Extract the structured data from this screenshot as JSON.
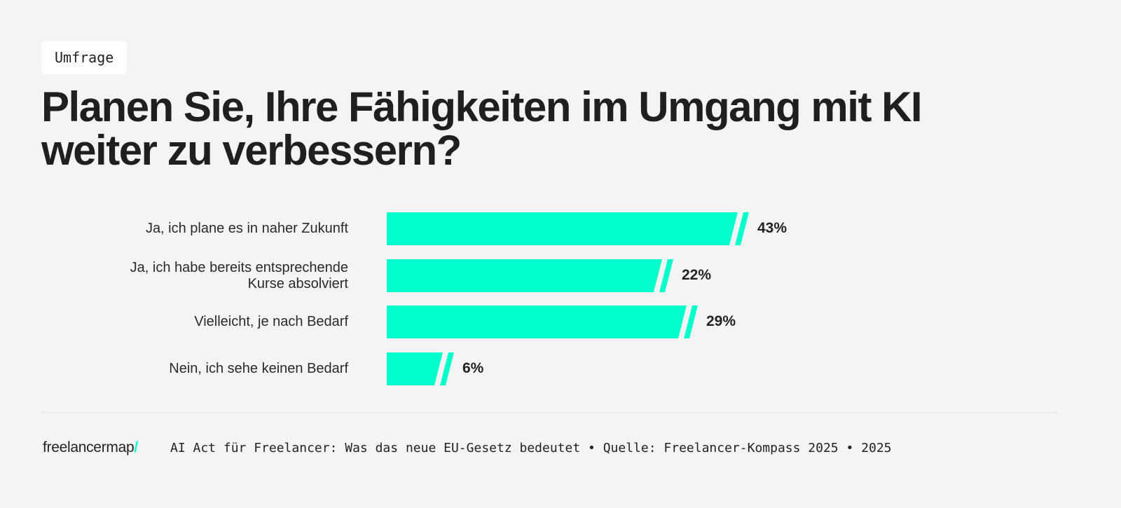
{
  "tag": "Umfrage",
  "chart_data": {
    "type": "bar",
    "orientation": "horizontal",
    "title": "Planen Sie, Ihre Fähigkeiten im Umgang mit KI weiter zu verbessern?",
    "categories": [
      "Ja, ich plane es in naher Zukunft",
      "Ja, ich habe bereits entsprechende Kurse absolviert",
      "Vielleicht, je nach Bedarf",
      "Nein, ich sehe keinen Bedarf"
    ],
    "values": [
      43,
      22,
      29,
      6
    ],
    "value_labels": [
      "43%",
      "22%",
      "29%",
      "6%"
    ],
    "bar_color": "#00ffcc",
    "broken_axis": true,
    "grid": false
  },
  "labels": [
    "Ja, ich plane es in naher Zukunft",
    "Ja, ich habe bereits entsprechende\nKurse absolviert",
    "Vielleicht, je nach Bedarf",
    "Nein, ich sehe keinen Bedarf"
  ],
  "footer": {
    "logo": "freelancermap",
    "logo_slash": "/",
    "text": "AI Act für Freelancer: Was das neue EU-Gesetz bedeutet • Quelle: Freelancer-Kompass 2025 • 2025"
  }
}
